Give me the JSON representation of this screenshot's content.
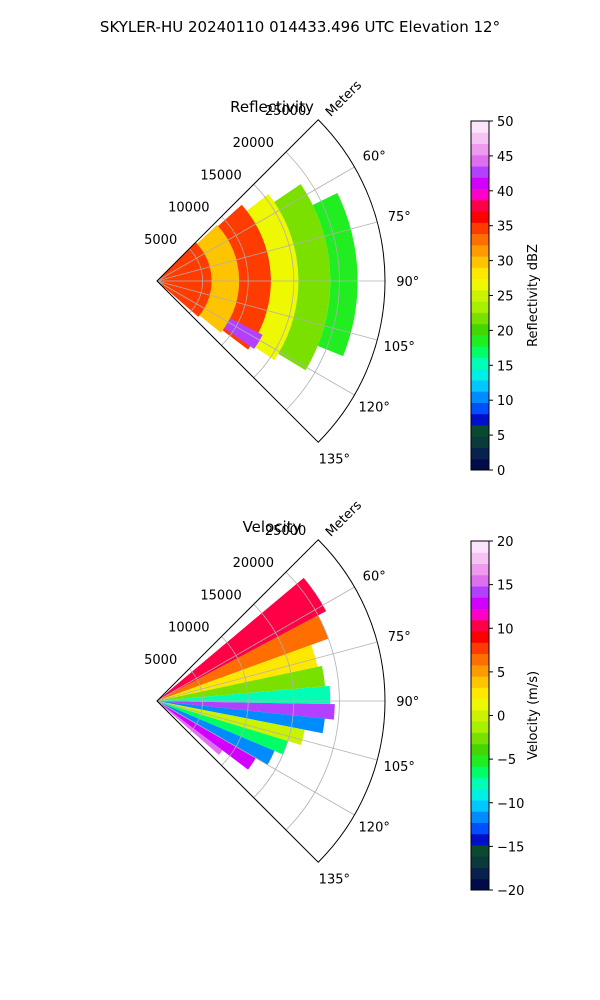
{
  "figure": {
    "suptitle": "SKYLER-HU  20240110  014433.496 UTC Elevation 12°"
  },
  "chart_data": [
    {
      "type": "heatmap",
      "title": "Reflectivity",
      "radial_label": "Meters",
      "range_ticks": [
        5000,
        10000,
        15000,
        20000,
        25000
      ],
      "range_tick_labels": [
        "5000",
        "10000",
        "15000",
        "20000",
        "25000"
      ],
      "azimuth_ticks": [
        60,
        75,
        90,
        105,
        120,
        135
      ],
      "azimuth_tick_labels": [
        "60°",
        "75°",
        "90°",
        "105°",
        "120°",
        "135°"
      ],
      "azimuth_range": [
        45,
        135
      ],
      "range_max": 25000,
      "colorbar": {
        "label": "Reflectivity dBZ",
        "min": 0,
        "max": 50,
        "ticks": [
          0,
          5,
          10,
          15,
          20,
          25,
          30,
          35,
          40,
          45,
          50
        ],
        "tick_labels": [
          "0",
          "5",
          "10",
          "15",
          "20",
          "25",
          "30",
          "35",
          "40",
          "45",
          "50"
        ],
        "colors": [
          "#000c4a",
          "#08224d",
          "#0b3a3a",
          "#0a4a2e",
          "#0010c8",
          "#0050ff",
          "#008cff",
          "#00c8ff",
          "#00f0e6",
          "#00ffb4",
          "#00ff66",
          "#20ee20",
          "#44d600",
          "#7ae000",
          "#a6f000",
          "#cbf200",
          "#eef800",
          "#ffe800",
          "#ffc400",
          "#ff9a00",
          "#ff6e00",
          "#ff3c00",
          "#ff0000",
          "#ff0046",
          "#ff00c8",
          "#d200ff",
          "#b440ff",
          "#de70f0",
          "#ee9aee",
          "#f6c4f4",
          "#fbe4fb"
        ]
      },
      "rings": [
        {
          "r_start": 0,
          "r_end": 6000,
          "az_start": 45,
          "az_end": 131,
          "value": 34
        },
        {
          "r_start": 6000,
          "r_end": 9000,
          "az_start": 47,
          "az_end": 129,
          "value": 30
        },
        {
          "r_start": 9000,
          "r_end": 12500,
          "az_start": 48,
          "az_end": 127,
          "value": 35
        },
        {
          "r_start": 12500,
          "r_end": 15500,
          "az_start": 52,
          "az_end": 124,
          "value": 26
        },
        {
          "r_start": 15500,
          "r_end": 19000,
          "az_start": 56,
          "az_end": 121,
          "value": 21
        },
        {
          "r_start": 19000,
          "r_end": 22000,
          "az_start": 64,
          "az_end": 112,
          "value": 19
        }
      ],
      "features": [
        {
          "r_start": 9000,
          "r_end": 13000,
          "az_start": 117,
          "az_end": 125,
          "value": 42
        }
      ]
    },
    {
      "type": "heatmap",
      "title": "Velocity",
      "radial_label": "Meters",
      "range_ticks": [
        5000,
        10000,
        15000,
        20000,
        25000
      ],
      "range_tick_labels": [
        "5000",
        "10000",
        "15000",
        "20000",
        "25000"
      ],
      "azimuth_ticks": [
        60,
        75,
        90,
        105,
        120,
        135
      ],
      "azimuth_tick_labels": [
        "60°",
        "75°",
        "90°",
        "105°",
        "120°",
        "135°"
      ],
      "azimuth_range": [
        45,
        135
      ],
      "range_max": 25000,
      "colorbar": {
        "label": "Velocity (m/s)",
        "min": -20,
        "max": 20,
        "ticks": [
          -20,
          -15,
          -10,
          -5,
          0,
          5,
          10,
          15,
          20
        ],
        "tick_labels": [
          "−20",
          "−15",
          "−10",
          "−5",
          "0",
          "5",
          "10",
          "15",
          "20"
        ],
        "colors": [
          "#000c4a",
          "#08224d",
          "#0b3a3a",
          "#0a4a2e",
          "#0010c8",
          "#0050ff",
          "#008cff",
          "#00c8ff",
          "#00f0e6",
          "#00ffb4",
          "#00ff66",
          "#20ee20",
          "#44d600",
          "#7ae000",
          "#a6f000",
          "#cbf200",
          "#eef800",
          "#ffe800",
          "#ffc400",
          "#ff9a00",
          "#ff6e00",
          "#ff3c00",
          "#ff0000",
          "#ff0046",
          "#ff00c8",
          "#d200ff",
          "#b440ff",
          "#de70f0",
          "#ee9aee",
          "#f6c4f4",
          "#fbe4fb"
        ]
      },
      "sectors": [
        {
          "az_start": 50,
          "az_end": 62,
          "r_end": 21000,
          "value": 10
        },
        {
          "az_start": 62,
          "az_end": 70,
          "r_end": 20000,
          "value": 7
        },
        {
          "az_start": 70,
          "az_end": 78,
          "r_end": 18000,
          "value": 2
        },
        {
          "az_start": 78,
          "az_end": 85,
          "r_end": 18500,
          "value": -3
        },
        {
          "az_start": 85,
          "az_end": 91,
          "r_end": 19000,
          "value": -8
        },
        {
          "az_start": 91,
          "az_end": 96,
          "r_end": 19500,
          "value": 14
        },
        {
          "az_start": 96,
          "az_end": 101,
          "r_end": 18500,
          "value": -12
        },
        {
          "az_start": 101,
          "az_end": 107,
          "r_end": 16500,
          "value": 0
        },
        {
          "az_start": 107,
          "az_end": 113,
          "r_end": 15000,
          "value": -7
        },
        {
          "az_start": 113,
          "az_end": 120,
          "r_end": 14000,
          "value": -11
        },
        {
          "az_start": 120,
          "az_end": 127,
          "r_end": 12500,
          "value": 13
        },
        {
          "az_start": 127,
          "az_end": 131,
          "r_end": 9000,
          "value": 16
        }
      ]
    }
  ]
}
